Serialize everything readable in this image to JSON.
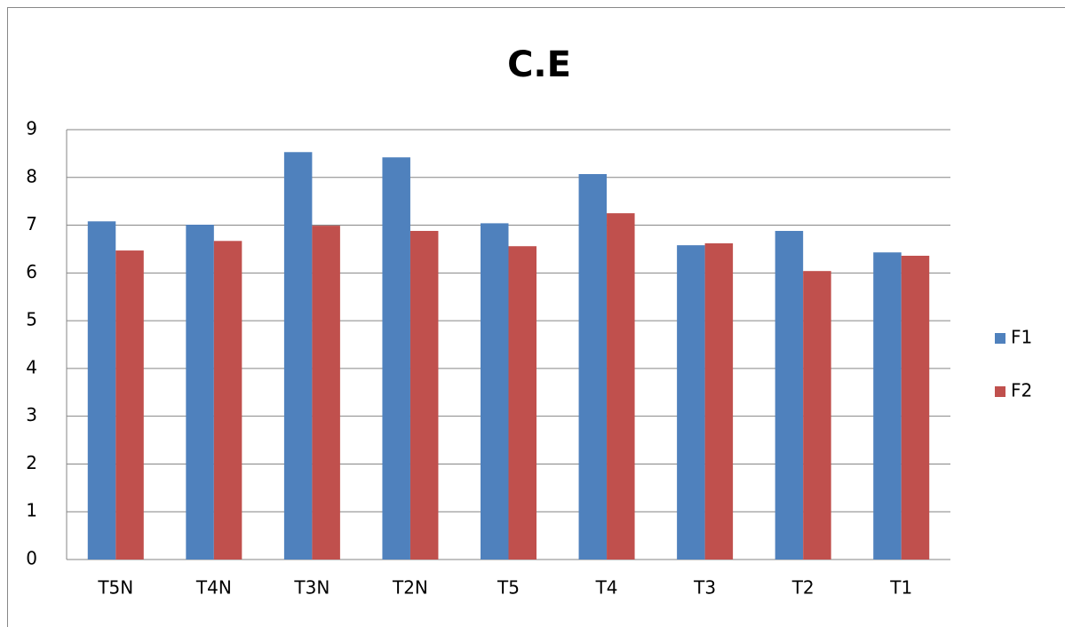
{
  "chart_data": {
    "type": "bar",
    "title": "C.E",
    "categories": [
      "T5N",
      "T4N",
      "T3N",
      "T2N",
      "T5",
      "T4",
      "T3",
      "T2",
      "T1"
    ],
    "series": [
      {
        "name": "F1",
        "color": "#4f81bd",
        "values": [
          7.08,
          7.01,
          8.53,
          8.42,
          7.04,
          8.07,
          6.58,
          6.88,
          6.43
        ]
      },
      {
        "name": "F2",
        "color": "#c0504d",
        "values": [
          6.47,
          6.67,
          6.99,
          6.88,
          6.56,
          7.25,
          6.62,
          6.04,
          6.36
        ]
      }
    ],
    "ylim": [
      0,
      9
    ],
    "yticks": [
      0,
      1,
      2,
      3,
      4,
      5,
      6,
      7,
      8,
      9
    ],
    "grid": true,
    "legend": "right"
  }
}
